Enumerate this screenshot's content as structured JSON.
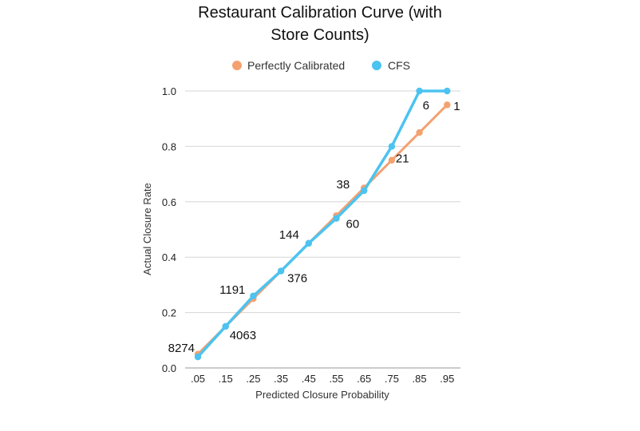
{
  "chart_data": {
    "type": "line",
    "title_lines": [
      "Restaurant Calibration Curve (with",
      "Store Counts)"
    ],
    "xlabel": "Predicted Closure Probability",
    "ylabel": "Actual Closure Rate",
    "categories": [
      ".05",
      ".15",
      ".25",
      ".35",
      ".45",
      ".55",
      ".65",
      ".75",
      ".85",
      ".95"
    ],
    "x": [
      0.05,
      0.15,
      0.25,
      0.35,
      0.45,
      0.55,
      0.65,
      0.75,
      0.85,
      0.95
    ],
    "ylim": [
      0,
      1
    ],
    "y_ticks": [
      "0.0",
      "0.2",
      "0.4",
      "0.6",
      "0.8",
      "1.0"
    ],
    "y_tick_values": [
      0,
      0.2,
      0.4,
      0.6,
      0.8,
      1.0
    ],
    "grid": true,
    "legend_position": "top",
    "series": [
      {
        "name": "Perfectly Calibrated",
        "color": "#f4a170",
        "values": [
          0.05,
          0.15,
          0.25,
          0.35,
          0.45,
          0.55,
          0.65,
          0.75,
          0.85,
          0.95
        ]
      },
      {
        "name": "CFS",
        "color": "#4cc3f0",
        "values": [
          0.04,
          0.15,
          0.26,
          0.35,
          0.45,
          0.54,
          0.64,
          0.8,
          1.0,
          1.0
        ]
      }
    ],
    "annotations": [
      "8274",
      "4063",
      "1191",
      "376",
      "144",
      "60",
      "38",
      "21",
      "6",
      "1"
    ]
  }
}
